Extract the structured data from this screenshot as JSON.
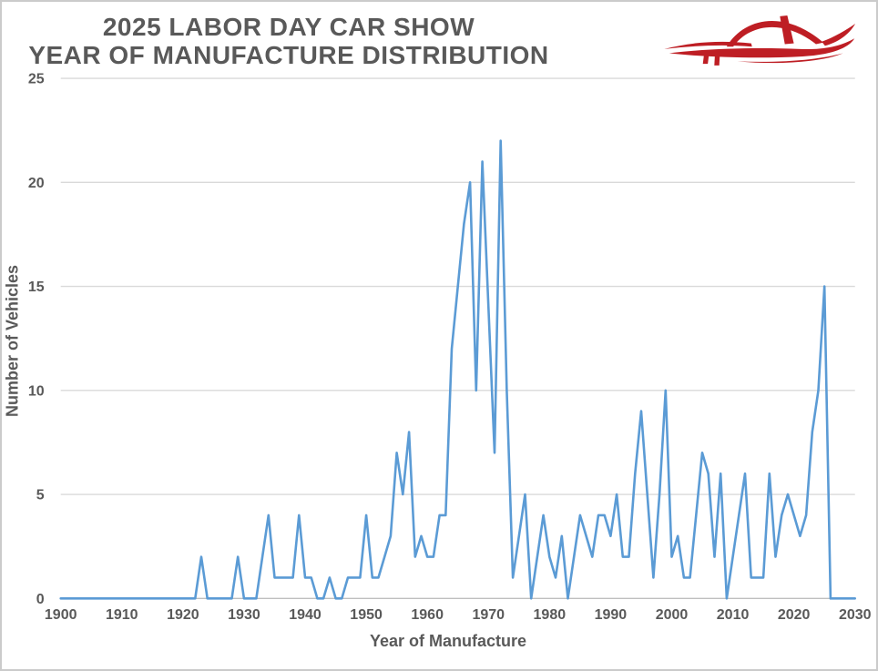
{
  "header": {
    "title_line1": "2025 LABOR DAY CAR SHOW",
    "title_line2": "YEAR OF MANUFACTURE DISTRIBUTION"
  },
  "logo": {
    "name": "red-car-silhouette",
    "color": "#BE1E24"
  },
  "colors": {
    "text": "#595959",
    "gridline": "#D9D9D9",
    "axis_line": "#BFBFBF",
    "series_line": "#5B9BD5",
    "border": "#CBCBCB",
    "logo_red": "#BE1E24"
  },
  "chart_data": {
    "type": "line",
    "title": "2025 LABOR DAY CAR SHOW - YEAR OF MANUFACTURE DISTRIBUTION",
    "xlabel": "Year of Manufacture",
    "ylabel": "Number of Vehicles",
    "x_start": 1900,
    "x_step": 1,
    "xlim": [
      1900,
      2030
    ],
    "ylim": [
      0,
      25
    ],
    "grid": "horizontal",
    "legend": "none",
    "x_ticks": [
      "1900",
      "1910",
      "1920",
      "1930",
      "1940",
      "1950",
      "1960",
      "1970",
      "1980",
      "1990",
      "2000",
      "2010",
      "2020",
      "2030"
    ],
    "y_ticks": [
      "0",
      "5",
      "10",
      "15",
      "20",
      "25"
    ],
    "values": [
      0,
      0,
      0,
      0,
      0,
      0,
      0,
      0,
      0,
      0,
      0,
      0,
      0,
      0,
      0,
      0,
      0,
      0,
      0,
      0,
      0,
      0,
      0,
      2,
      0,
      0,
      0,
      0,
      0,
      2,
      0,
      0,
      0,
      2,
      4,
      1,
      1,
      1,
      1,
      4,
      1,
      1,
      0,
      0,
      1,
      0,
      0,
      1,
      1,
      1,
      4,
      1,
      1,
      2,
      3,
      7,
      5,
      8,
      2,
      3,
      2,
      2,
      4,
      4,
      12,
      15,
      18,
      20,
      10,
      21,
      14,
      7,
      22,
      10,
      1,
      3,
      5,
      0,
      2,
      4,
      2,
      1,
      3,
      0,
      2,
      4,
      3,
      2,
      4,
      4,
      3,
      5,
      2,
      2,
      6,
      9,
      5,
      1,
      5,
      10,
      2,
      3,
      1,
      1,
      4,
      7,
      6,
      2,
      6,
      0,
      2,
      4,
      6,
      1,
      1,
      1,
      6,
      2,
      4,
      5,
      4,
      3,
      4,
      8,
      10,
      15,
      0,
      0,
      0,
      0,
      0
    ]
  }
}
